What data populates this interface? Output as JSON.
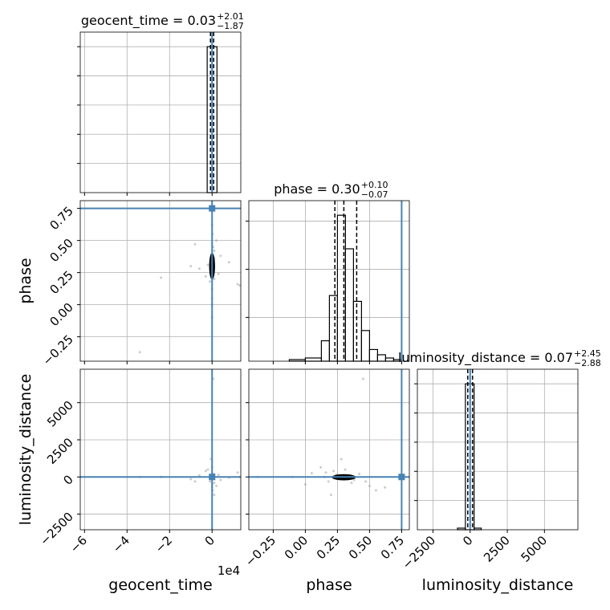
{
  "chart_data": {
    "type": "corner",
    "offset_label": "1e4",
    "truth_color": "#4682b4",
    "hist_color": "#000000",
    "point_color": "#999999",
    "contour_color": "#000000",
    "grid": true,
    "hist_ylim": [
      0,
      1.1
    ],
    "parameters": [
      {
        "name": "geocent_time",
        "title": "geocent_time = 0.03",
        "upper": "+2.01",
        "lower": "−1.87",
        "lim": [
          -6.2,
          1.35
        ],
        "ticks": [
          {
            "value": -6,
            "label": "−6"
          },
          {
            "value": -4,
            "label": "−4"
          },
          {
            "value": -2,
            "label": "−2"
          },
          0
        ],
        "truth": 0,
        "bins": [
          -0.23,
          0.23
        ],
        "counts": [
          1.0
        ],
        "hist_yticks": [
          0.2,
          0.4,
          0.6,
          0.8,
          1.0
        ],
        "quantiles": [
          -0.075,
          0,
          0.075
        ]
      },
      {
        "name": "phase",
        "title": "phase = 0.30",
        "upper": "+0.10",
        "lower": "−0.07",
        "lim": [
          -0.44,
          0.81
        ],
        "ticks": [
          {
            "value": -0.25,
            "label": "−0.25"
          },
          {
            "value": 0,
            "label": "0.00"
          },
          0.25,
          {
            "value": 0.5,
            "label": "0.50"
          },
          0.75
        ],
        "truth": 0.75,
        "bins": [
          -0.125,
          0,
          0.125,
          0.1875,
          0.25,
          0.3125,
          0.375,
          0.4375,
          0.5,
          0.5625,
          0.625,
          0.6875,
          0.75
        ],
        "counts": [
          0.011,
          0.022,
          0.14,
          0.45,
          1.0,
          0.77,
          0.41,
          0.21,
          0.08,
          0.044,
          0.022,
          0.011
        ],
        "hist_yticks": [
          0.3,
          0.63,
          0.96
        ],
        "quantiles": [
          0.23,
          0.3,
          0.4
        ]
      },
      {
        "name": "luminosity_distance",
        "title": "luminosity_distance = 0.07",
        "upper": "+2.45",
        "lower": "−2.88",
        "lim": [
          -3550,
          7250
        ],
        "ticks": [
          {
            "value": -2500,
            "label": "−2500"
          },
          0,
          2500,
          5000
        ],
        "truth": 0,
        "bins": [
          -851,
          -319,
          266,
          745
        ],
        "counts": [
          0.011,
          1.0,
          0.011
        ],
        "hist_yticks": [
          0.2,
          0.4,
          0.6,
          0.8,
          1.0
        ],
        "quantiles": [
          -160,
          0,
          160
        ]
      }
    ],
    "samples": [
      [
        0,
        0.3,
        0
      ],
      [
        0.05,
        0.25,
        -100
      ],
      [
        -0.05,
        0.35,
        80
      ],
      [
        0.1,
        0.42,
        200
      ],
      [
        -0.1,
        0.18,
        -300
      ],
      [
        0.2,
        0.5,
        -600
      ],
      [
        -0.3,
        0.22,
        400
      ],
      [
        0.4,
        0.38,
        -200
      ],
      [
        -0.6,
        0.28,
        100
      ],
      [
        0.8,
        0.33,
        -50
      ],
      [
        1.2,
        0.16,
        300
      ],
      [
        -1.0,
        0.3,
        -150
      ],
      [
        0,
        0.05,
        250
      ],
      [
        0,
        0.0,
        -500
      ],
      [
        0,
        0.62,
        -700
      ],
      [
        -3.4,
        -0.37,
        0
      ],
      [
        -2.4,
        0.21,
        0
      ],
      [
        0.05,
        0.45,
        6600
      ],
      [
        0.1,
        0.2,
        -1200
      ],
      [
        -0.05,
        0.28,
        1200
      ],
      [
        0.02,
        0.55,
        -900
      ],
      [
        0,
        0.12,
        650
      ],
      [
        1.3,
        0.15,
        0
      ],
      [
        -0.8,
        0.47,
        -300
      ],
      [
        0.3,
        0.24,
        150
      ],
      [
        0,
        -0.1,
        0
      ],
      [
        0.1,
        0.36,
        -400
      ],
      [
        -0.2,
        0.31,
        500
      ]
    ],
    "contours": [
      {
        "xi": 0,
        "yi": 1,
        "cx": 0,
        "cy": 0.3,
        "rx": 0.12,
        "ry": 0.1
      },
      {
        "xi": 0,
        "yi": 2,
        "cx": 0,
        "cy": 0,
        "rx": 0.1,
        "ry": 150
      },
      {
        "xi": 1,
        "yi": 2,
        "cx": 0.3,
        "cy": -20,
        "rx": 0.09,
        "ry": 180
      }
    ]
  }
}
